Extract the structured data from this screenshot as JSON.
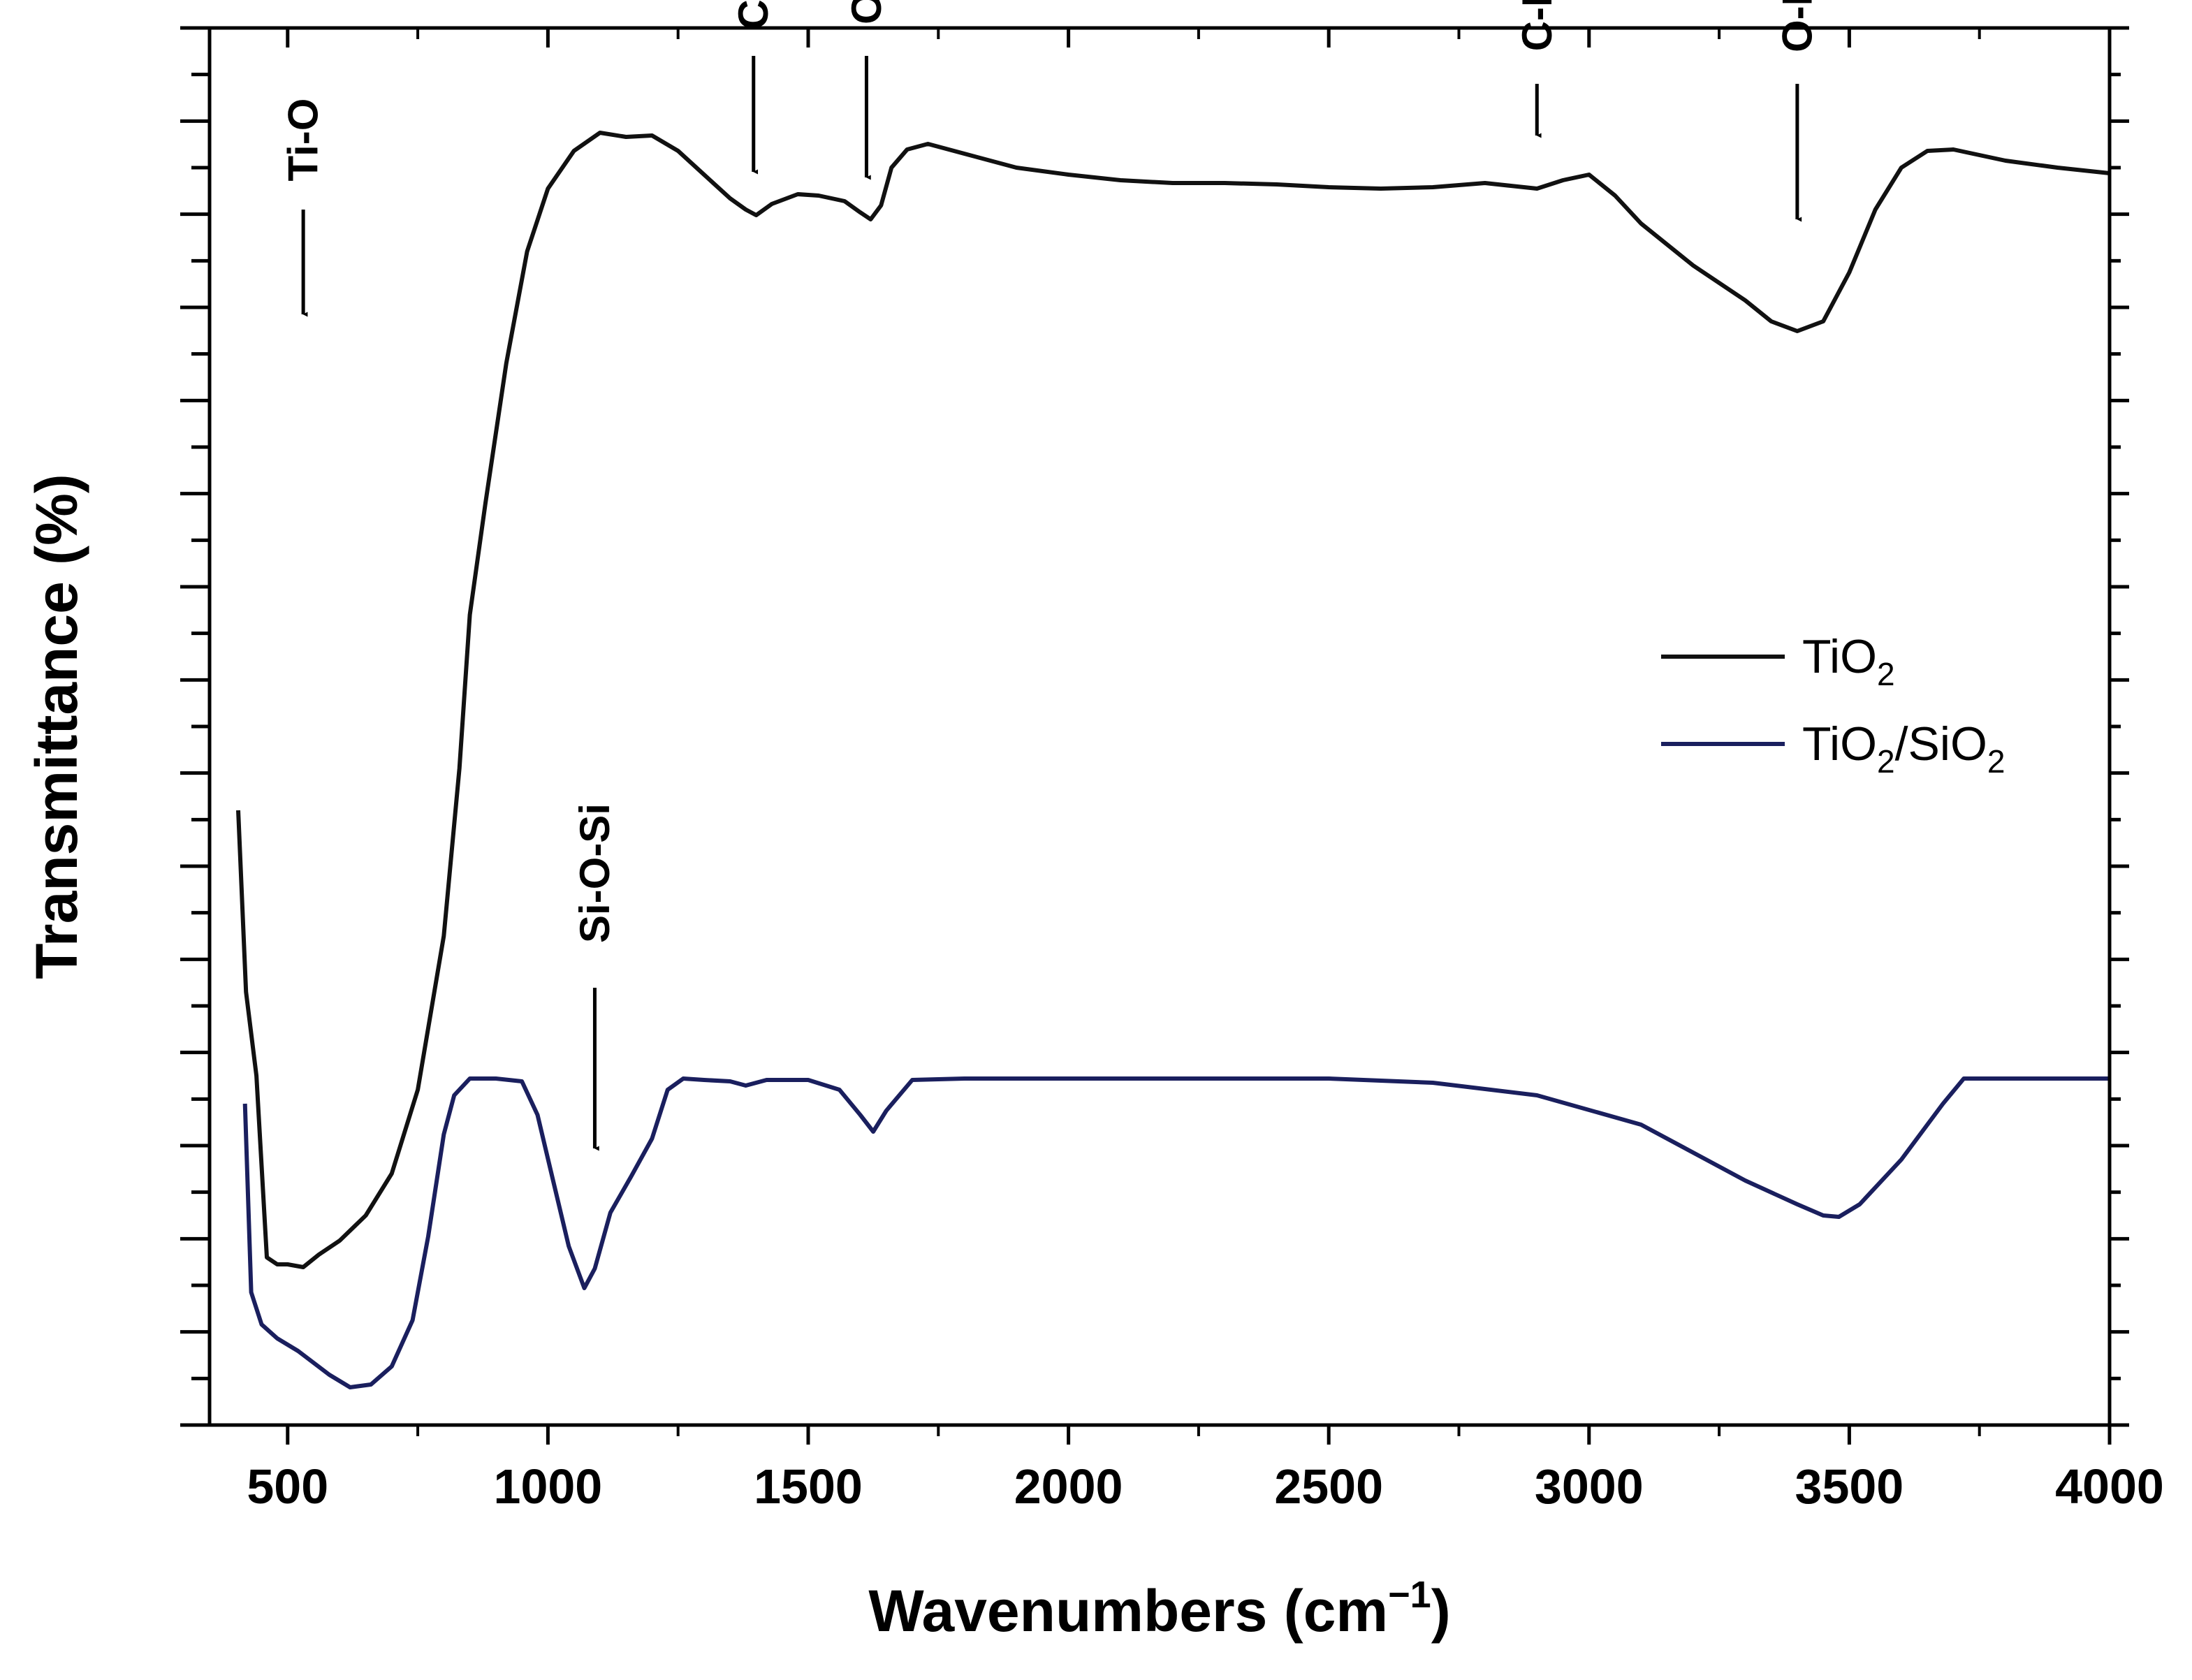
{
  "chart_data": {
    "type": "line",
    "xlabel": "Wavenumbers (cm",
    "xlabel_sup": "−1",
    "xlabel_close": ")",
    "ylabel": "Transmittance (%)",
    "xlim": [
      350,
      4000
    ],
    "ylim": [
      0,
      100
    ],
    "x_ticks": [
      500,
      1000,
      1500,
      2000,
      2500,
      3000,
      3500,
      4000
    ],
    "y_tick_labels_shown": false,
    "grid": false,
    "legend_position": "right-middle",
    "series": [
      {
        "name": "TiO",
        "name_sub": "2",
        "color": "#111111",
        "points": [
          [
            405,
            44
          ],
          [
            420,
            31
          ],
          [
            440,
            25
          ],
          [
            460,
            12
          ],
          [
            480,
            11.5
          ],
          [
            500,
            11.5
          ],
          [
            530,
            11.3
          ],
          [
            560,
            12.2
          ],
          [
            600,
            13.2
          ],
          [
            650,
            15
          ],
          [
            700,
            18
          ],
          [
            750,
            24
          ],
          [
            800,
            35
          ],
          [
            830,
            47
          ],
          [
            850,
            58
          ],
          [
            880,
            66
          ],
          [
            920,
            76
          ],
          [
            960,
            84
          ],
          [
            1000,
            88.5
          ],
          [
            1050,
            91.2
          ],
          [
            1100,
            92.5
          ],
          [
            1150,
            92.2
          ],
          [
            1200,
            92.3
          ],
          [
            1250,
            91.2
          ],
          [
            1300,
            89.5
          ],
          [
            1350,
            87.8
          ],
          [
            1380,
            87.0
          ],
          [
            1400,
            86.6
          ],
          [
            1430,
            87.4
          ],
          [
            1480,
            88.1
          ],
          [
            1520,
            88.0
          ],
          [
            1570,
            87.6
          ],
          [
            1600,
            86.8
          ],
          [
            1620,
            86.3
          ],
          [
            1640,
            87.3
          ],
          [
            1660,
            90.0
          ],
          [
            1690,
            91.3
          ],
          [
            1730,
            91.7
          ],
          [
            1800,
            91.0
          ],
          [
            1900,
            90.0
          ],
          [
            2000,
            89.5
          ],
          [
            2100,
            89.1
          ],
          [
            2200,
            88.9
          ],
          [
            2300,
            88.9
          ],
          [
            2400,
            88.8
          ],
          [
            2500,
            88.6
          ],
          [
            2600,
            88.5
          ],
          [
            2700,
            88.6
          ],
          [
            2800,
            88.9
          ],
          [
            2850,
            88.7
          ],
          [
            2900,
            88.5
          ],
          [
            2950,
            89.1
          ],
          [
            3000,
            89.5
          ],
          [
            3050,
            88.0
          ],
          [
            3100,
            86.0
          ],
          [
            3200,
            83.0
          ],
          [
            3300,
            80.5
          ],
          [
            3350,
            79.0
          ],
          [
            3400,
            78.3
          ],
          [
            3450,
            79.0
          ],
          [
            3500,
            82.5
          ],
          [
            3550,
            87.0
          ],
          [
            3600,
            90.0
          ],
          [
            3650,
            91.2
          ],
          [
            3700,
            91.3
          ],
          [
            3800,
            90.5
          ],
          [
            3900,
            90.0
          ],
          [
            4000,
            89.6
          ]
        ]
      },
      {
        "name": "TiO",
        "name_sub": "2",
        "name_mid": "/SiO",
        "name_sub2": "2",
        "color": "#1a1f5e",
        "points": [
          [
            418,
            23
          ],
          [
            430,
            9.5
          ],
          [
            450,
            7.2
          ],
          [
            480,
            6.2
          ],
          [
            520,
            5.3
          ],
          [
            580,
            3.6
          ],
          [
            620,
            2.7
          ],
          [
            660,
            2.9
          ],
          [
            700,
            4.2
          ],
          [
            740,
            7.5
          ],
          [
            770,
            13.5
          ],
          [
            800,
            20.8
          ],
          [
            820,
            23.6
          ],
          [
            850,
            24.8
          ],
          [
            900,
            24.8
          ],
          [
            950,
            24.6
          ],
          [
            980,
            22.2
          ],
          [
            1010,
            17.5
          ],
          [
            1040,
            12.8
          ],
          [
            1070,
            9.8
          ],
          [
            1090,
            11.2
          ],
          [
            1120,
            15.2
          ],
          [
            1160,
            17.8
          ],
          [
            1200,
            20.5
          ],
          [
            1230,
            24.0
          ],
          [
            1260,
            24.8
          ],
          [
            1300,
            24.7
          ],
          [
            1350,
            24.6
          ],
          [
            1380,
            24.3
          ],
          [
            1420,
            24.7
          ],
          [
            1500,
            24.7
          ],
          [
            1560,
            24.0
          ],
          [
            1600,
            22.2
          ],
          [
            1625,
            21.0
          ],
          [
            1650,
            22.5
          ],
          [
            1700,
            24.7
          ],
          [
            1800,
            24.8
          ],
          [
            2000,
            24.8
          ],
          [
            2200,
            24.8
          ],
          [
            2500,
            24.8
          ],
          [
            2700,
            24.5
          ],
          [
            2900,
            23.6
          ],
          [
            3100,
            21.5
          ],
          [
            3300,
            17.5
          ],
          [
            3400,
            15.8
          ],
          [
            3450,
            15.0
          ],
          [
            3480,
            14.9
          ],
          [
            3520,
            15.8
          ],
          [
            3600,
            19.0
          ],
          [
            3680,
            23.0
          ],
          [
            3720,
            24.8
          ],
          [
            3800,
            24.8
          ],
          [
            4000,
            24.8
          ]
        ]
      }
    ],
    "annotations": [
      {
        "label": "Ti-O",
        "x": 530,
        "label_y": 92,
        "arrow_from": 87,
        "arrow_to": 79.5
      },
      {
        "label": "C=O",
        "x": 1395,
        "label_y": 103,
        "arrow_from": 98,
        "arrow_to": 89.7
      },
      {
        "label": "O-H",
        "x": 1612,
        "label_y": 103,
        "arrow_from": 98,
        "arrow_to": 89.3
      },
      {
        "label": "C-H",
        "x": 2900,
        "label_y": 101,
        "arrow_from": 96,
        "arrow_to": 92.3
      },
      {
        "label": "O-H",
        "x": 3400,
        "label_y": 101,
        "arrow_from": 96,
        "arrow_to": 86.3
      },
      {
        "label": "Si-O-Si",
        "x": 1090,
        "label_y": 39.5,
        "arrow_from": 31.3,
        "arrow_to": 19.8
      }
    ]
  }
}
